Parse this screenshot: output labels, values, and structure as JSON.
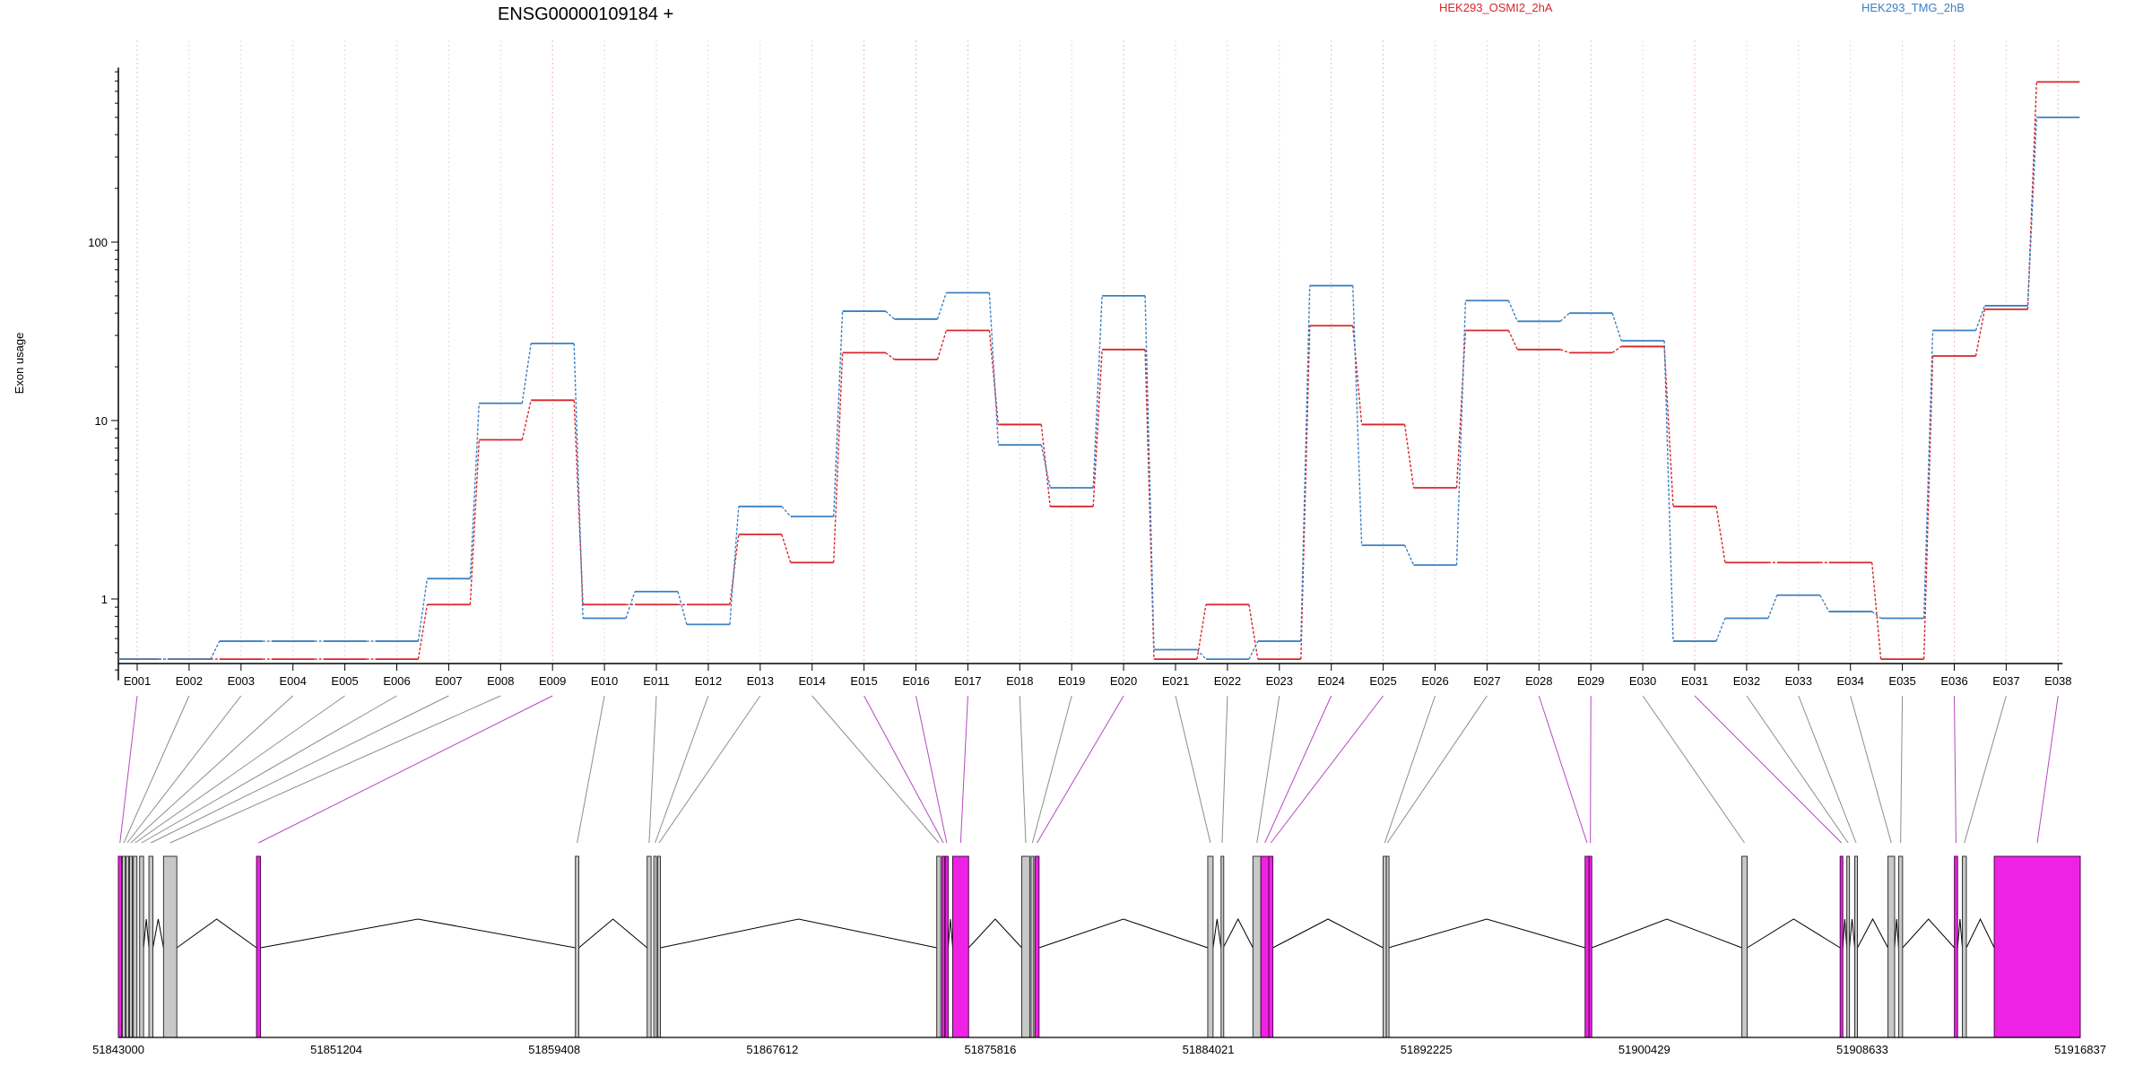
{
  "chart_data": {
    "type": "line",
    "title": "ENSG00000109184 +",
    "ylabel": "Exon usage",
    "yscale": "log",
    "ylim": [
      0.35,
      950
    ],
    "yticks": [
      1,
      10,
      100
    ],
    "ytick_labels": [
      "1",
      "10",
      "100"
    ],
    "grid": "vertical dotted lines at exon positions",
    "legend_position": "top",
    "categories": [
      "E001",
      "E002",
      "E003",
      "E004",
      "E005",
      "E006",
      "E007",
      "E008",
      "E009",
      "E010",
      "E011",
      "E012",
      "E013",
      "E014",
      "E015",
      "E016",
      "E017",
      "E018",
      "E019",
      "E020",
      "E021",
      "E022",
      "E023",
      "E024",
      "E025",
      "E026",
      "E027",
      "E028",
      "E029",
      "E030",
      "E031",
      "E032",
      "E033",
      "E034",
      "E035",
      "E036",
      "E037",
      "E038"
    ],
    "series": [
      {
        "name": "HEK293_OSMI2_2hA",
        "color": "#d7262b",
        "values": [
          0.46,
          0.46,
          0.46,
          0.46,
          0.46,
          0.46,
          0.93,
          7.8,
          13.0,
          0.93,
          0.93,
          0.93,
          2.3,
          1.6,
          24.0,
          22.0,
          32.0,
          9.5,
          3.3,
          25.0,
          0.46,
          0.93,
          0.46,
          34.0,
          9.5,
          4.2,
          32.0,
          25.0,
          24.0,
          26.0,
          3.3,
          1.6,
          1.6,
          1.6,
          0.46,
          23.0,
          42.0,
          790.0
        ]
      },
      {
        "name": "HEK293_TMG_2hB",
        "color": "#3b80c3",
        "values": [
          0.46,
          0.46,
          0.58,
          0.58,
          0.58,
          0.58,
          1.3,
          12.5,
          27.0,
          0.78,
          1.1,
          0.72,
          3.3,
          2.9,
          41.0,
          37.0,
          52.0,
          7.3,
          4.2,
          50.0,
          0.52,
          0.46,
          0.58,
          57.0,
          2.0,
          1.55,
          47.0,
          36.0,
          40.0,
          28.0,
          0.58,
          0.78,
          1.05,
          0.85,
          0.78,
          32.0,
          44.0,
          500.0
        ]
      }
    ],
    "gene_model": {
      "coordinate_labels": [
        "51843000",
        "51851204",
        "51859408",
        "51867612",
        "51875816",
        "51884021",
        "51892225",
        "51900429",
        "51908633",
        "51916837"
      ],
      "highlighted_exons": [
        "E001",
        "E009",
        "E015",
        "E016",
        "E017",
        "E020",
        "E024",
        "E025",
        "E028",
        "E029",
        "E031",
        "E036",
        "E038"
      ],
      "highlight_color": "#ee22e4",
      "exon_color": "#c8c8c8"
    }
  }
}
